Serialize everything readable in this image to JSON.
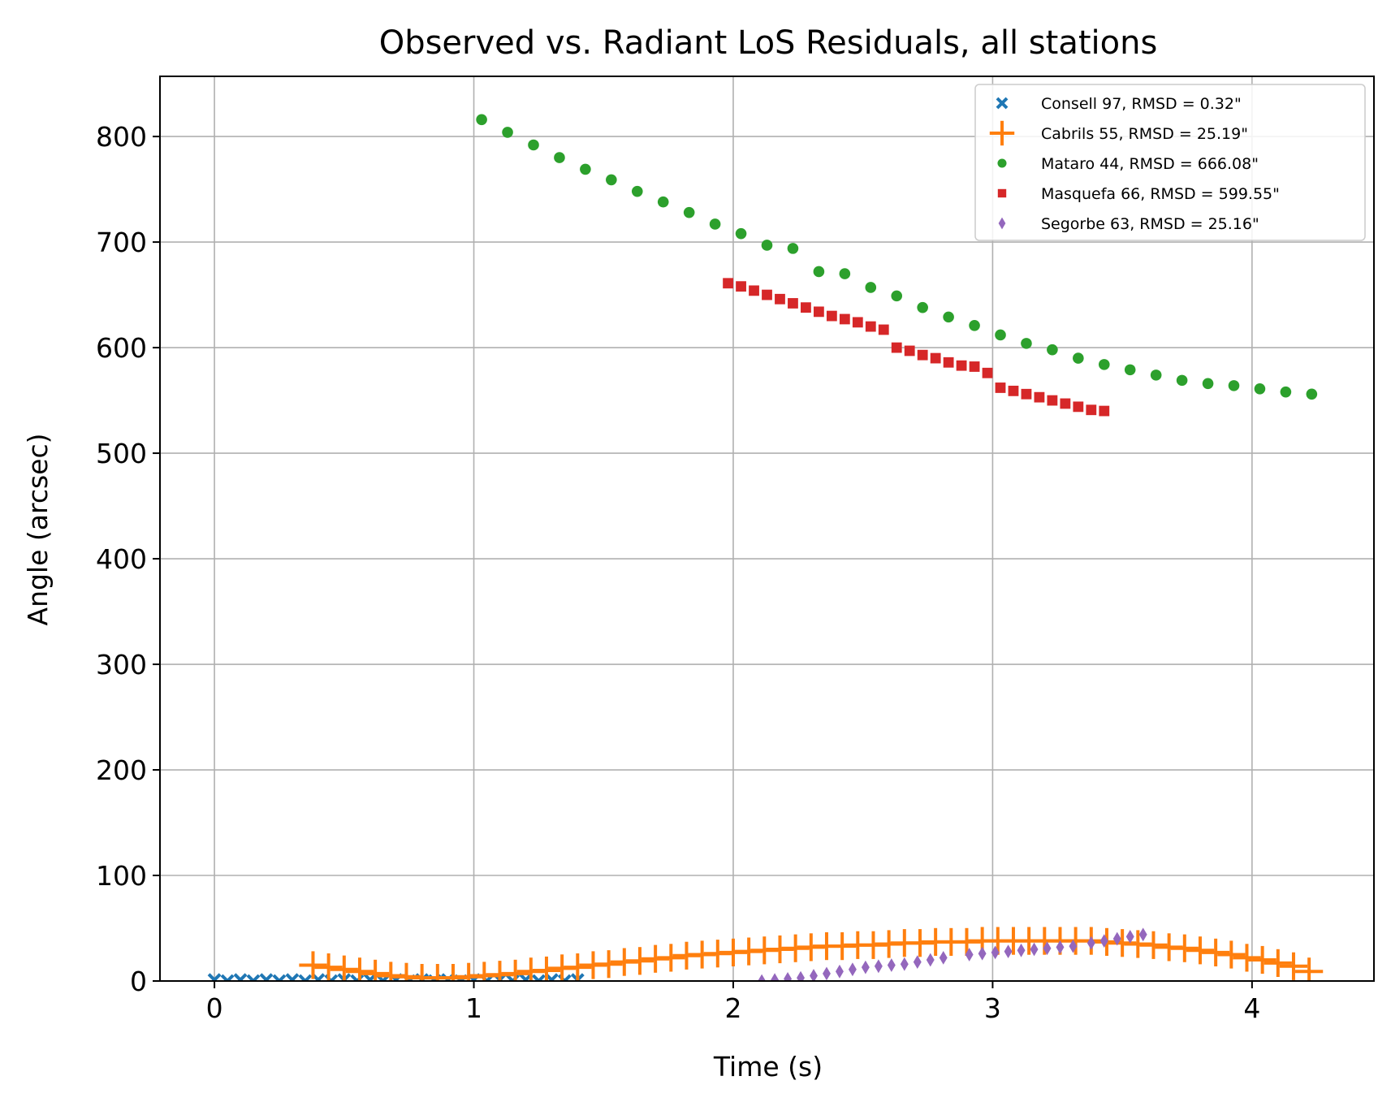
{
  "chart_data": {
    "type": "scatter",
    "title": "Observed vs. Radiant LoS Residuals, all stations",
    "xlabel": "Time (s)",
    "ylabel": "Angle (arcsec)",
    "xlim": [
      -0.21,
      4.47
    ],
    "ylim": [
      0,
      857
    ],
    "xticks": [
      0,
      1,
      2,
      3,
      4
    ],
    "yticks": [
      0,
      100,
      200,
      300,
      400,
      500,
      600,
      700,
      800
    ],
    "grid": true,
    "legend_position": "upper right",
    "series": [
      {
        "name": "Consell 97, RMSD = 0.32\"",
        "marker": "x",
        "color": "#1f77b4",
        "x": [
          0.0,
          0.05,
          0.1,
          0.15,
          0.2,
          0.25,
          0.3,
          0.35,
          0.4,
          0.45,
          0.5,
          0.55,
          0.6,
          0.65,
          0.7,
          0.75,
          0.8,
          0.85,
          0.9,
          0.95,
          1.0,
          1.05,
          1.1,
          1.15,
          1.2,
          1.25,
          1.3,
          1.35,
          1.4
        ],
        "y": [
          1,
          0,
          1,
          0,
          1,
          0,
          1,
          0,
          1,
          0,
          1,
          0,
          1,
          0,
          1,
          0,
          1,
          0,
          1,
          0,
          1,
          0,
          1,
          0,
          1,
          0,
          1,
          0,
          1
        ]
      },
      {
        "name": "Cabrils 55, RMSD = 25.19\"",
        "marker": "+",
        "color": "#ff7f0e",
        "x": [
          0.38,
          0.44,
          0.5,
          0.56,
          0.62,
          0.68,
          0.74,
          0.8,
          0.86,
          0.92,
          0.98,
          1.04,
          1.1,
          1.16,
          1.22,
          1.28,
          1.34,
          1.4,
          1.46,
          1.52,
          1.58,
          1.64,
          1.7,
          1.76,
          1.82,
          1.88,
          1.94,
          2.0,
          2.06,
          2.12,
          2.18,
          2.24,
          2.3,
          2.36,
          2.42,
          2.48,
          2.54,
          2.6,
          2.66,
          2.72,
          2.78,
          2.84,
          2.9,
          2.96,
          3.02,
          3.08,
          3.14,
          3.2,
          3.26,
          3.32,
          3.38,
          3.44,
          3.5,
          3.56,
          3.62,
          3.68,
          3.74,
          3.8,
          3.86,
          3.92,
          3.98,
          4.04,
          4.1,
          4.16,
          4.22
        ],
        "y": [
          15,
          13,
          11,
          9,
          7,
          5,
          4,
          3,
          3,
          3,
          4,
          5,
          6,
          7,
          9,
          10,
          12,
          13,
          15,
          16,
          18,
          19,
          21,
          22,
          24,
          25,
          26,
          27,
          28,
          29,
          30,
          31,
          32,
          33,
          33,
          34,
          34,
          35,
          36,
          36,
          37,
          37,
          37,
          38,
          38,
          38,
          38,
          38,
          38,
          38,
          38,
          37,
          36,
          35,
          34,
          32,
          31,
          29,
          27,
          25,
          22,
          20,
          17,
          14,
          9
        ]
      },
      {
        "name": "Mataro 44, RMSD = 666.08\"",
        "marker": "o",
        "color": "#2ca02c",
        "x": [
          1.03,
          1.13,
          1.23,
          1.33,
          1.43,
          1.53,
          1.63,
          1.73,
          1.83,
          1.93,
          2.03,
          2.13,
          2.23,
          2.33,
          2.43,
          2.53,
          2.63,
          2.73,
          2.83,
          2.93,
          3.03,
          3.13,
          3.23,
          3.33,
          3.43,
          3.53,
          3.63,
          3.73,
          3.83,
          3.93,
          4.03,
          4.13,
          4.23
        ],
        "y": [
          816,
          804,
          792,
          780,
          769,
          759,
          748,
          738,
          728,
          717,
          708,
          697,
          694,
          672,
          670,
          657,
          649,
          638,
          629,
          621,
          612,
          604,
          598,
          590,
          584,
          579,
          574,
          569,
          566,
          564,
          561,
          558,
          556
        ]
      },
      {
        "name": "Masquefa 66, RMSD = 599.55\"",
        "marker": "s",
        "color": "#d62728",
        "x": [
          1.98,
          2.03,
          2.08,
          2.13,
          2.18,
          2.23,
          2.28,
          2.33,
          2.38,
          2.43,
          2.48,
          2.53,
          2.58,
          2.63,
          2.68,
          2.73,
          2.78,
          2.83,
          2.88,
          2.93,
          2.98,
          3.03,
          3.08,
          3.13,
          3.18,
          3.23,
          3.28,
          3.33,
          3.38,
          3.43
        ],
        "y": [
          661,
          658,
          654,
          650,
          646,
          642,
          638,
          634,
          630,
          627,
          624,
          620,
          617,
          600,
          597,
          593,
          590,
          586,
          583,
          582,
          576,
          562,
          559,
          556,
          553,
          550,
          547,
          544,
          541,
          540
        ]
      },
      {
        "name": "Segorbe 63, RMSD = 25.16\"",
        "marker": "d",
        "color": "#9467bd",
        "x": [
          2.11,
          2.16,
          2.21,
          2.26,
          2.31,
          2.36,
          2.41,
          2.46,
          2.51,
          2.56,
          2.61,
          2.66,
          2.71,
          2.76,
          2.81,
          2.91,
          2.96,
          3.01,
          3.06,
          3.11,
          3.16,
          3.21,
          3.26,
          3.31,
          3.38,
          3.43,
          3.48,
          3.53,
          3.58
        ],
        "y": [
          0,
          1,
          2,
          3,
          5,
          7,
          9,
          11,
          13,
          14,
          15,
          16,
          18,
          20,
          22,
          25,
          26,
          27,
          28,
          29,
          30,
          31,
          32,
          33,
          36,
          38,
          40,
          42,
          44
        ]
      }
    ]
  }
}
